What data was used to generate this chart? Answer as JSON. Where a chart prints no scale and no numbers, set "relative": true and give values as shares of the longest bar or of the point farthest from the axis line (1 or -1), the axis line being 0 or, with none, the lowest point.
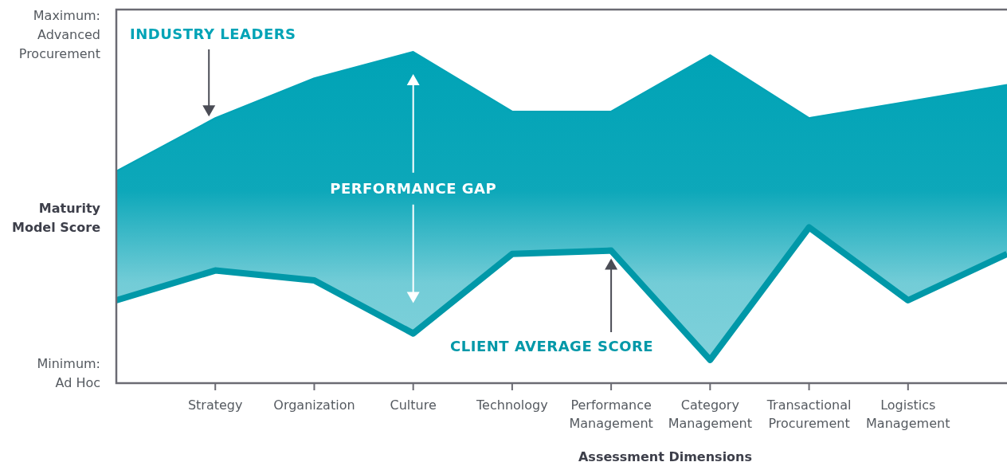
{
  "chart_data": {
    "type": "line",
    "relative": true,
    "xlabel": "Assessment Dimensions",
    "ylabel": "Maturity Model Score",
    "annotations": [
      "Maximum: Advanced Procurement",
      "Minimum: Ad Hoc",
      "PERFORMANCE GAP"
    ],
    "categories": [
      null,
      "Strategy",
      "Organization",
      "Culture",
      "Technology",
      "Performance Management",
      "Category Management",
      "Transactional Procurement",
      "Logistics Management",
      null
    ],
    "marker": "none",
    "series": [
      {
        "name": "INDUSTRY LEADERS",
        "color": "#00a3b6",
        "values": [
          0.64,
          0.8,
          0.92,
          1,
          0.82,
          0.82,
          0.99,
          0.8,
          0.85,
          0.9
        ],
        "lower": [
          0.25,
          0.34,
          0.31,
          0.15,
          0.39,
          0.4,
          0.07,
          0.47,
          0.25,
          0.39
        ],
        "upper": [
          0.64,
          0.8,
          0.92,
          1,
          0.82,
          0.82,
          0.99,
          0.8,
          0.85,
          0.9
        ]
      },
      {
        "name": "CLIENT AVERAGE SCORE",
        "color": "#0098a8",
        "values": [
          0.25,
          0.34,
          0.31,
          0.15,
          0.39,
          0.4,
          0.07,
          0.47,
          0.25,
          0.39
        ]
      }
    ]
  }
}
